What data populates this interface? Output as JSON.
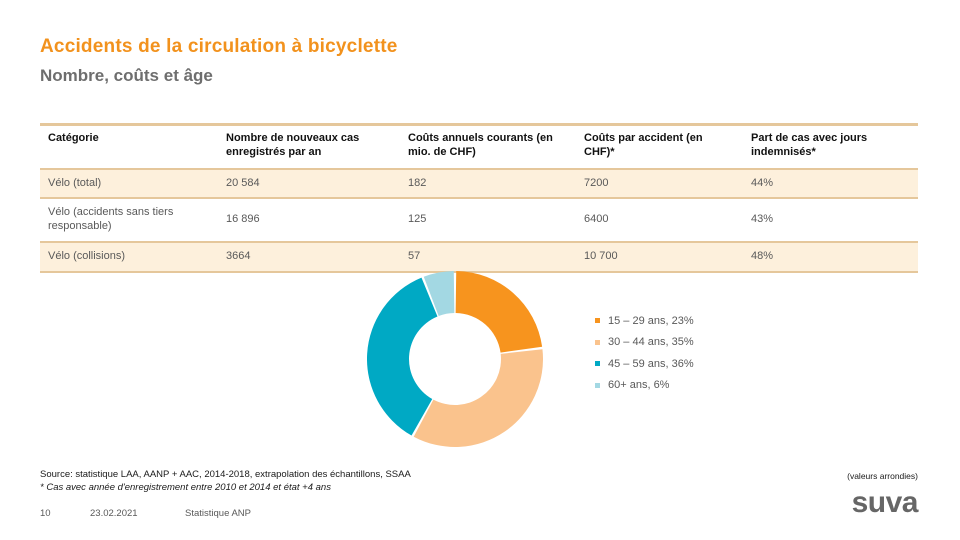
{
  "slide": {
    "title": "Accidents de la circulation à bicyclette",
    "subtitle": "Nombre, coûts et âge"
  },
  "table": {
    "headers": [
      "Catégorie",
      "Nombre de nouveaux cas enregistrés par an",
      "Coûts annuels courants (en mio. de CHF)",
      "Coûts par accident (en CHF)*",
      "Part de cas avec jours indemnisés*"
    ],
    "rows": [
      [
        "Vélo (total)",
        "20 584",
        "182",
        "7200",
        "44%"
      ],
      [
        "Vélo (accidents sans tiers responsable)",
        "16 896",
        "125",
        "6400",
        "43%"
      ],
      [
        "Vélo (collisions)",
        "3664",
        "57",
        "10 700",
        "48%"
      ]
    ]
  },
  "chart_data": {
    "type": "pie",
    "subtype": "donut",
    "categories": [
      "15 – 29 ans",
      "30 – 44 ans",
      "45 – 59 ans",
      "60+ ans"
    ],
    "values": [
      23,
      35,
      36,
      6
    ],
    "unit": "%",
    "colors": [
      "#F7941E",
      "#FAC38D",
      "#00A9C4",
      "#A3D8E3"
    ],
    "legend_position": "right",
    "legend_labels": [
      "15 – 29 ans, 23%",
      "30 – 44 ans, 35%",
      "45 – 59 ans, 36%",
      "60+ ans, 6%"
    ],
    "start_angle_deg": 0,
    "direction": "clockwise"
  },
  "footnotes": {
    "source": "Source: statistique LAA, AANP + AAC, 2014-2018, extrapolation des échantillons, SSAA",
    "note": "* Cas avec année d'enregistrement entre 2010 et 2014 et état +4 ans",
    "rounding": "(valeurs arrondies)"
  },
  "footer": {
    "page_number": "10",
    "date": "23.02.2021",
    "label": "Statistique ANP",
    "logo": "suva"
  },
  "colors": {
    "accent_orange": "#F2921D",
    "subtitle_gray": "#6E6E6E",
    "table_border": "#E5C79B",
    "row_tint": "#FDF0DC",
    "body_text_gray": "#595959",
    "logo_gray": "#666666"
  }
}
